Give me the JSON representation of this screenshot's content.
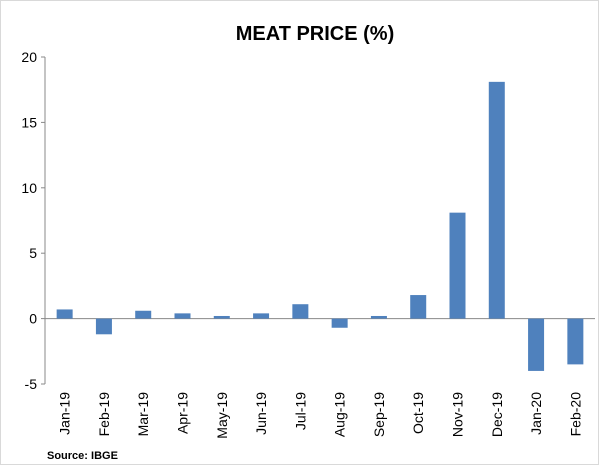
{
  "chart_data": {
    "type": "bar",
    "title": "MEAT PRICE (%)",
    "source": "Source: IBGE",
    "categories": [
      "Jan-19",
      "Feb-19",
      "Mar-19",
      "Apr-19",
      "May-19",
      "Jun-19",
      "Jul-19",
      "Aug-19",
      "Sep-19",
      "Oct-19",
      "Nov-19",
      "Dec-19",
      "Jan-20",
      "Feb-20"
    ],
    "values": [
      0.7,
      -1.2,
      0.6,
      0.4,
      0.2,
      0.4,
      1.1,
      -0.7,
      0.2,
      1.8,
      8.1,
      18.1,
      -4.0,
      -3.5
    ],
    "color": "#4f81bd",
    "ylim": [
      -5,
      20
    ],
    "yticks": [
      -5,
      0,
      5,
      10,
      15,
      20
    ],
    "grid": false
  }
}
